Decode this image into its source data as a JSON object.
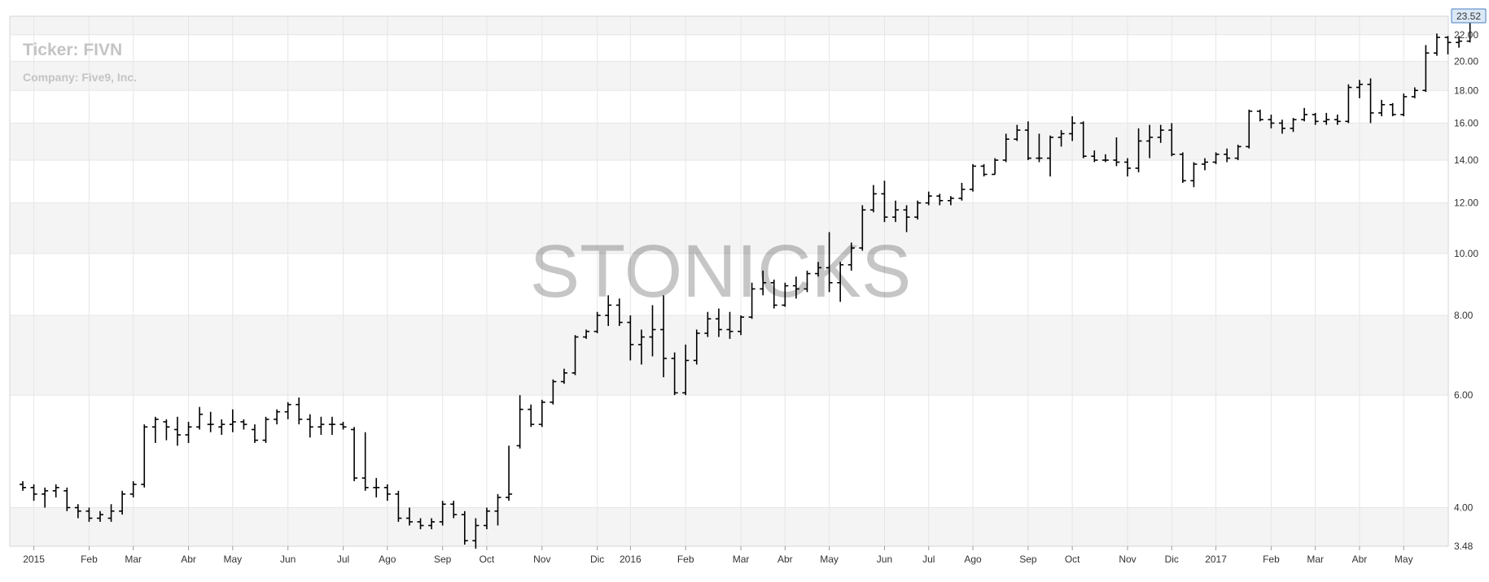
{
  "header": {
    "ticker_label": "Ticker: FIVN",
    "company_label": "Company: Five9, Inc."
  },
  "watermark": "STONICKS",
  "colors": {
    "bar": "#000000",
    "band": "#f4f4f4",
    "grid": "#e6e6e6",
    "price_tag_fill": "#dbe8f6",
    "price_tag_border": "#4a7fc0"
  },
  "chart_data": {
    "type": "ohlc",
    "title": "",
    "xlabel": "",
    "ylabel": "",
    "y_scale": "log",
    "ylim": [
      3.48,
      23.52
    ],
    "grid": true,
    "y_ticks": [
      "22.00",
      "20.00",
      "18.00",
      "16.00",
      "14.00",
      "12.00",
      "10.00",
      "8.00",
      "6.00",
      "4.00",
      "3.48"
    ],
    "y_tick_values": [
      22,
      20,
      18,
      16,
      14,
      12,
      10,
      8,
      6,
      4,
      3.48
    ],
    "last_price_label": "23.52",
    "x_labels": [
      "2015",
      "Feb",
      "Mar",
      "Abr",
      "May",
      "Jun",
      "Jul",
      "Ago",
      "Sep",
      "Oct",
      "Nov",
      "Dic",
      "2016",
      "Feb",
      "Mar",
      "Abr",
      "May",
      "Jun",
      "Jul",
      "Ago",
      "Sep",
      "Oct",
      "Nov",
      "Dic",
      "2017",
      "Feb",
      "Mar",
      "Abr",
      "May"
    ],
    "x_label_week_index": [
      1,
      6,
      10,
      15,
      19,
      24,
      29,
      33,
      38,
      42,
      47,
      52,
      55,
      60,
      65,
      69,
      73,
      78,
      82,
      86,
      91,
      95,
      100,
      104,
      108,
      113,
      117,
      121,
      125
    ],
    "series": [
      {
        "name": "FIVN",
        "ohlc": [
          [
            4.35,
            4.4,
            4.25,
            4.3
          ],
          [
            4.3,
            4.35,
            4.1,
            4.2
          ],
          [
            4.2,
            4.3,
            4.0,
            4.25
          ],
          [
            4.25,
            4.35,
            4.15,
            4.3
          ],
          [
            4.25,
            4.3,
            3.95,
            4.0
          ],
          [
            4.0,
            4.05,
            3.85,
            3.95
          ],
          [
            3.95,
            4.0,
            3.8,
            3.85
          ],
          [
            3.85,
            3.95,
            3.8,
            3.9
          ],
          [
            3.85,
            4.05,
            3.8,
            3.95
          ],
          [
            3.95,
            4.25,
            3.9,
            4.2
          ],
          [
            4.2,
            4.4,
            4.15,
            4.35
          ],
          [
            4.35,
            5.4,
            4.3,
            5.35
          ],
          [
            5.35,
            5.55,
            5.05,
            5.5
          ],
          [
            5.45,
            5.5,
            5.1,
            5.35
          ],
          [
            5.3,
            5.55,
            5.0,
            5.2
          ],
          [
            5.2,
            5.45,
            5.05,
            5.35
          ],
          [
            5.35,
            5.75,
            5.3,
            5.6
          ],
          [
            5.4,
            5.65,
            5.25,
            5.4
          ],
          [
            5.35,
            5.5,
            5.2,
            5.4
          ],
          [
            5.4,
            5.7,
            5.25,
            5.45
          ],
          [
            5.45,
            5.5,
            5.3,
            5.4
          ],
          [
            5.3,
            5.4,
            5.05,
            5.1
          ],
          [
            5.1,
            5.55,
            5.05,
            5.5
          ],
          [
            5.5,
            5.7,
            5.4,
            5.65
          ],
          [
            5.65,
            5.85,
            5.5,
            5.8
          ],
          [
            5.8,
            5.95,
            5.4,
            5.5
          ],
          [
            5.5,
            5.6,
            5.15,
            5.35
          ],
          [
            5.35,
            5.55,
            5.2,
            5.4
          ],
          [
            5.4,
            5.55,
            5.2,
            5.4
          ],
          [
            5.4,
            5.45,
            5.3,
            5.35
          ],
          [
            5.3,
            5.35,
            4.4,
            4.45
          ],
          [
            4.45,
            5.25,
            4.25,
            4.3
          ],
          [
            4.3,
            4.45,
            4.15,
            4.3
          ],
          [
            4.3,
            4.35,
            4.1,
            4.2
          ],
          [
            4.2,
            4.25,
            3.8,
            3.85
          ],
          [
            3.85,
            4.0,
            3.75,
            3.8
          ],
          [
            3.8,
            3.85,
            3.7,
            3.75
          ],
          [
            3.75,
            3.85,
            3.7,
            3.8
          ],
          [
            3.8,
            4.1,
            3.75,
            4.05
          ],
          [
            4.05,
            4.1,
            3.85,
            3.9
          ],
          [
            3.9,
            3.95,
            3.5,
            3.55
          ],
          [
            3.55,
            3.85,
            3.45,
            3.75
          ],
          [
            3.75,
            4.0,
            3.7,
            3.95
          ],
          [
            3.95,
            4.2,
            3.75,
            4.15
          ],
          [
            4.15,
            5.0,
            4.1,
            4.2
          ],
          [
            5.0,
            6.0,
            4.95,
            5.7
          ],
          [
            5.7,
            5.8,
            5.35,
            5.4
          ],
          [
            5.4,
            5.9,
            5.35,
            5.85
          ],
          [
            5.85,
            6.35,
            5.8,
            6.3
          ],
          [
            6.3,
            6.6,
            6.25,
            6.5
          ],
          [
            6.5,
            7.45,
            6.45,
            7.4
          ],
          [
            7.4,
            7.6,
            7.35,
            7.55
          ],
          [
            7.55,
            8.1,
            7.5,
            8.0
          ],
          [
            8.0,
            8.6,
            7.7,
            8.3
          ],
          [
            8.3,
            8.5,
            7.7,
            7.8
          ],
          [
            7.8,
            8.0,
            6.8,
            7.2
          ],
          [
            7.2,
            7.6,
            6.7,
            7.4
          ],
          [
            7.4,
            8.3,
            6.9,
            7.6
          ],
          [
            7.6,
            8.6,
            6.4,
            6.85
          ],
          [
            6.85,
            7.0,
            6.0,
            6.05
          ],
          [
            6.05,
            7.2,
            6.0,
            6.8
          ],
          [
            6.8,
            7.6,
            6.7,
            7.5
          ],
          [
            7.5,
            8.1,
            7.4,
            7.9
          ],
          [
            7.9,
            8.2,
            7.4,
            7.6
          ],
          [
            7.6,
            8.1,
            7.35,
            7.55
          ],
          [
            7.55,
            8.0,
            7.45,
            7.95
          ],
          [
            7.95,
            9.0,
            7.9,
            8.8
          ],
          [
            8.8,
            9.4,
            8.6,
            9.0
          ],
          [
            9.0,
            9.1,
            8.2,
            8.3
          ],
          [
            8.3,
            9.0,
            8.25,
            8.9
          ],
          [
            8.9,
            9.2,
            8.5,
            8.8
          ],
          [
            8.8,
            9.4,
            8.7,
            9.3
          ],
          [
            9.3,
            9.7,
            9.2,
            9.5
          ],
          [
            9.5,
            10.8,
            8.7,
            9.0
          ],
          [
            9.0,
            9.7,
            8.4,
            9.6
          ],
          [
            9.6,
            10.4,
            9.4,
            10.2
          ],
          [
            10.2,
            11.9,
            10.1,
            11.7
          ],
          [
            11.7,
            12.8,
            11.6,
            12.4
          ],
          [
            12.4,
            13.0,
            11.2,
            11.4
          ],
          [
            11.4,
            12.1,
            11.2,
            11.7
          ],
          [
            11.7,
            11.9,
            10.8,
            11.4
          ],
          [
            11.4,
            12.1,
            11.3,
            12.0
          ],
          [
            12.0,
            12.5,
            11.9,
            12.3
          ],
          [
            12.3,
            12.4,
            11.9,
            12.1
          ],
          [
            12.1,
            12.3,
            11.9,
            12.2
          ],
          [
            12.2,
            12.9,
            12.1,
            12.6
          ],
          [
            12.6,
            13.8,
            12.5,
            13.7
          ],
          [
            13.7,
            13.8,
            13.2,
            13.3
          ],
          [
            13.3,
            14.1,
            13.3,
            14.0
          ],
          [
            14.0,
            15.4,
            13.9,
            15.1
          ],
          [
            15.1,
            15.9,
            15.0,
            15.6
          ],
          [
            15.6,
            16.1,
            14.0,
            14.1
          ],
          [
            14.1,
            15.4,
            13.9,
            14.1
          ],
          [
            14.1,
            15.3,
            13.2,
            15.2
          ],
          [
            15.2,
            15.6,
            14.7,
            15.4
          ],
          [
            15.4,
            16.4,
            15.0,
            16.0
          ],
          [
            16.0,
            16.1,
            14.1,
            14.2
          ],
          [
            14.2,
            14.5,
            13.9,
            14.0
          ],
          [
            14.0,
            14.3,
            13.9,
            14.0
          ],
          [
            14.0,
            15.2,
            13.7,
            13.9
          ],
          [
            13.9,
            14.1,
            13.2,
            13.6
          ],
          [
            13.6,
            15.7,
            13.4,
            15.0
          ],
          [
            15.0,
            15.9,
            14.1,
            15.2
          ],
          [
            15.2,
            15.9,
            14.9,
            15.6
          ],
          [
            15.6,
            16.0,
            14.2,
            14.3
          ],
          [
            14.3,
            14.4,
            12.9,
            13.0
          ],
          [
            13.0,
            13.9,
            12.7,
            13.8
          ],
          [
            13.8,
            14.1,
            13.5,
            13.9
          ],
          [
            13.9,
            14.4,
            13.8,
            14.3
          ],
          [
            14.3,
            14.6,
            13.9,
            14.1
          ],
          [
            14.1,
            14.8,
            14.0,
            14.7
          ],
          [
            14.7,
            16.8,
            14.6,
            16.7
          ],
          [
            16.7,
            16.8,
            16.1,
            16.2
          ],
          [
            16.2,
            16.5,
            15.7,
            16.0
          ],
          [
            16.0,
            16.2,
            15.4,
            15.7
          ],
          [
            15.7,
            16.3,
            15.5,
            16.2
          ],
          [
            16.2,
            16.9,
            16.1,
            16.5
          ],
          [
            16.5,
            16.6,
            15.9,
            16.1
          ],
          [
            16.1,
            16.6,
            15.9,
            16.2
          ],
          [
            16.2,
            16.5,
            15.9,
            16.1
          ],
          [
            16.1,
            18.4,
            16.0,
            18.2
          ],
          [
            18.2,
            18.7,
            17.5,
            18.4
          ],
          [
            18.4,
            18.8,
            16.0,
            16.6
          ],
          [
            16.6,
            17.4,
            16.4,
            17.1
          ],
          [
            17.1,
            17.2,
            16.4,
            16.5
          ],
          [
            16.5,
            17.8,
            16.4,
            17.6
          ],
          [
            17.6,
            18.2,
            17.5,
            18.0
          ],
          [
            18.0,
            21.2,
            17.9,
            20.6
          ],
          [
            20.6,
            22.1,
            20.4,
            21.8
          ],
          [
            21.8,
            21.9,
            20.5,
            21.4
          ],
          [
            21.4,
            21.9,
            21.0,
            21.5
          ],
          [
            21.5,
            23.52,
            21.4,
            23.52
          ]
        ]
      }
    ]
  }
}
